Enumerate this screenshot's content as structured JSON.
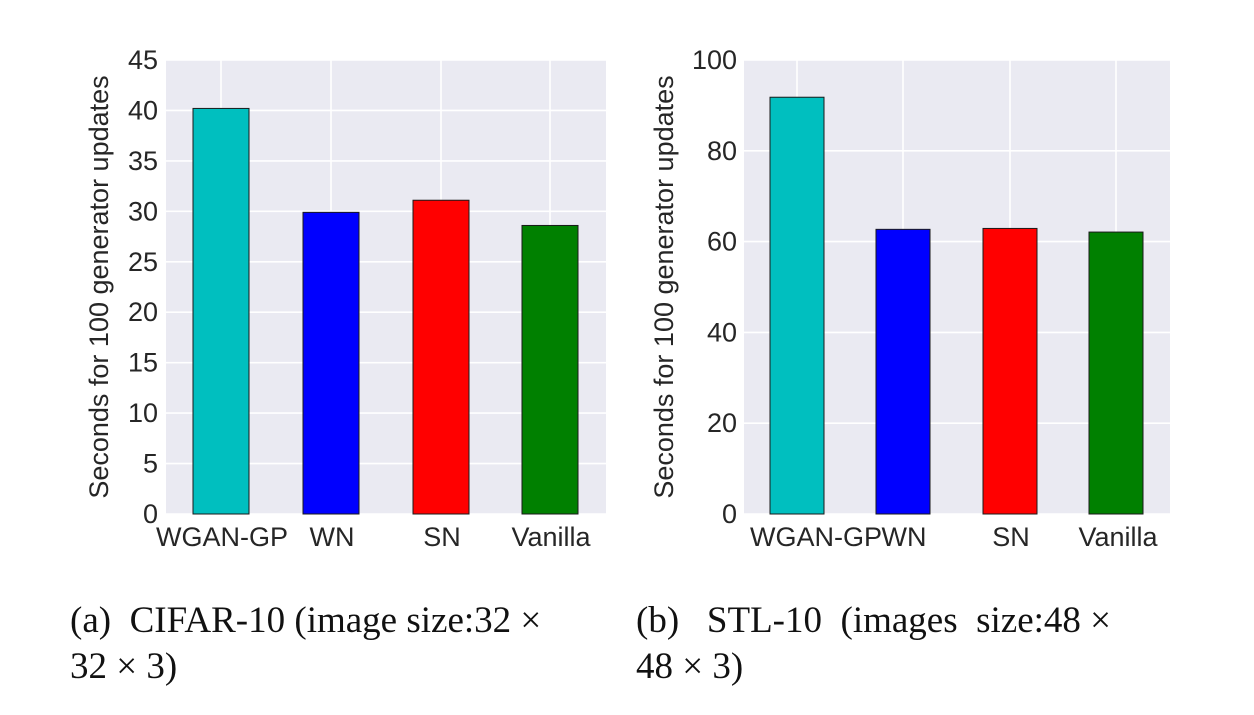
{
  "chart_data": [
    {
      "type": "bar",
      "categories": [
        "WGAN-GP",
        "WN",
        "SN",
        "Vanilla"
      ],
      "values": [
        40.2,
        29.9,
        31.1,
        28.6
      ],
      "colors": [
        "#00bfbf",
        "#0000ff",
        "#ff0000",
        "#008000"
      ],
      "ylabel": "Seconds for 100 generator updates",
      "ylim": [
        0,
        45
      ],
      "yticks": [
        "0",
        "5",
        "10",
        "15",
        "20",
        "25",
        "30",
        "35",
        "40",
        "45"
      ],
      "grid": true,
      "caption_lines": [
        "(a)  CIFAR-10 (image size:32 ×",
        "32 × 3)"
      ]
    },
    {
      "type": "bar",
      "categories": [
        "WGAN-GP",
        "WN",
        "SN",
        "Vanilla"
      ],
      "values": [
        91.8,
        62.7,
        62.9,
        62.1
      ],
      "colors": [
        "#00bfbf",
        "#0000ff",
        "#ff0000",
        "#008000"
      ],
      "ylabel": "Seconds for 100 generator updates",
      "ylim": [
        0,
        100
      ],
      "yticks": [
        "0",
        "20",
        "40",
        "60",
        "80",
        "100"
      ],
      "grid": true,
      "caption_lines": [
        "(b)   STL-10  (images  size:48 ×",
        "48 × 3)"
      ]
    }
  ]
}
